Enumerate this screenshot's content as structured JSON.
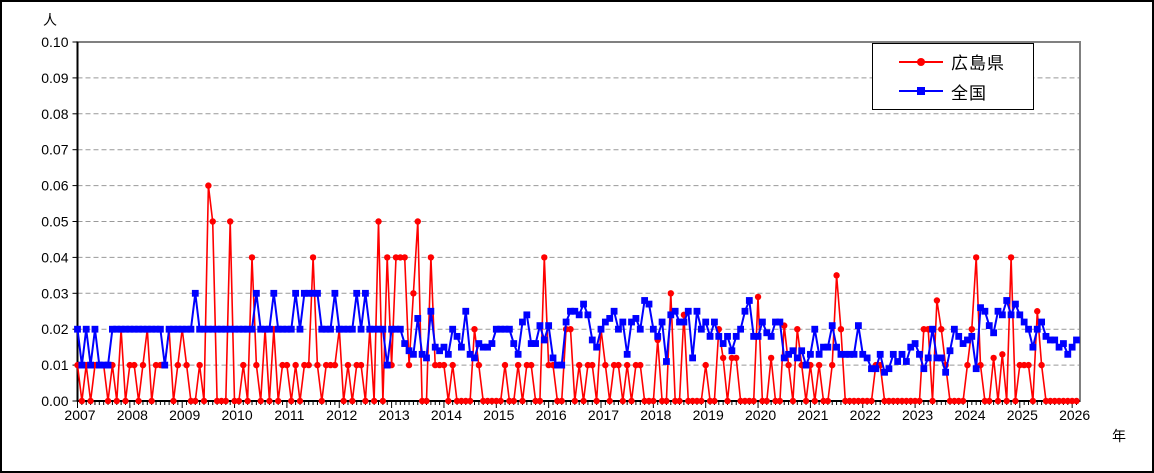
{
  "page": {
    "y_axis_unit": "人",
    "x_axis_unit": "年"
  },
  "chart_data": {
    "type": "line",
    "title": "",
    "x_unit_label": "年",
    "y_unit_label": "人",
    "frequency": "monthly",
    "x_start": "2007-01",
    "x_end": "2026-02",
    "x_tick_labels": [
      "2007",
      "2008",
      "2009",
      "2010",
      "2011",
      "2012",
      "2013",
      "2014",
      "2015",
      "2016",
      "2017",
      "2018",
      "2019",
      "2020",
      "2021",
      "2022",
      "2023",
      "2024",
      "2025",
      "2026"
    ],
    "y_tick_labels": [
      "0.00",
      "0.01",
      "0.02",
      "0.03",
      "0.04",
      "0.05",
      "0.06",
      "0.07",
      "0.08",
      "0.09",
      "0.10"
    ],
    "ylim": [
      0,
      0.1
    ],
    "grid": "horizontal-dashed",
    "legend_position": "top-right",
    "colors": {
      "grid": "#999999",
      "border": "#808080",
      "axis": "#000000"
    },
    "series": [
      {
        "name": "広島県",
        "color": "#ff0000",
        "marker": "circle",
        "values": [
          0.01,
          0,
          0.01,
          0,
          0.01,
          0.01,
          0.01,
          0,
          0.01,
          0,
          0.02,
          0,
          0.01,
          0.01,
          0,
          0.01,
          0.02,
          0,
          0.01,
          0.01,
          0.01,
          0.02,
          0,
          0.01,
          0.02,
          0.01,
          0,
          0,
          0.01,
          0,
          0.06,
          0.05,
          0,
          0,
          0,
          0.05,
          0,
          0,
          0.01,
          0,
          0.04,
          0.01,
          0,
          0.02,
          0,
          0.02,
          0,
          0.01,
          0.01,
          0,
          0.01,
          0,
          0.01,
          0.01,
          0.04,
          0.01,
          0,
          0.01,
          0.01,
          0.01,
          0.02,
          0,
          0.01,
          0,
          0.01,
          0.01,
          0,
          0.02,
          0,
          0.05,
          0,
          0.04,
          0.01,
          0.04,
          0.04,
          0.04,
          0.01,
          0.03,
          0.05,
          0,
          0,
          0.04,
          0.01,
          0.01,
          0.01,
          0,
          0.01,
          0,
          0,
          0,
          0,
          0.02,
          0.01,
          0,
          0,
          0,
          0,
          0,
          0.01,
          0,
          0,
          0.01,
          0,
          0.01,
          0.01,
          0,
          0,
          0.04,
          0.01,
          0.01,
          0,
          0,
          0.02,
          0.02,
          0,
          0.01,
          0,
          0.01,
          0.01,
          0,
          0.02,
          0.01,
          0,
          0.01,
          0.01,
          0,
          0.01,
          0,
          0.01,
          0.01,
          0,
          0,
          0,
          0.017,
          0,
          0,
          0.03,
          0,
          0,
          0.024,
          0,
          0,
          0,
          0,
          0.01,
          0,
          0,
          0.02,
          0.012,
          0,
          0.012,
          0.012,
          0,
          0,
          0,
          0,
          0.029,
          0,
          0,
          0.012,
          0,
          0,
          0.021,
          0.01,
          0,
          0.02,
          0.01,
          0,
          0.01,
          0,
          0.01,
          0,
          0,
          0.01,
          0.035,
          0.02,
          0,
          0,
          0,
          0,
          0,
          0,
          0,
          0.01,
          0.01,
          0,
          0,
          0,
          0,
          0,
          0,
          0,
          0,
          0,
          0.02,
          0.02,
          0,
          0.028,
          0.02,
          0.01,
          0,
          0,
          0,
          0,
          0.01,
          0.02,
          0.04,
          0.01,
          0,
          0,
          0.012,
          0,
          0.013,
          0,
          0.04,
          0,
          0.01,
          0.01,
          0.01,
          0,
          0.025,
          0.01,
          0,
          0,
          0,
          0,
          0,
          0,
          0,
          0
        ]
      },
      {
        "name": "全国",
        "color": "#0000ff",
        "marker": "square",
        "values": [
          0.02,
          0.01,
          0.02,
          0.01,
          0.02,
          0.01,
          0.01,
          0.01,
          0.02,
          0.02,
          0.02,
          0.02,
          0.02,
          0.02,
          0.02,
          0.02,
          0.02,
          0.02,
          0.02,
          0.02,
          0.01,
          0.02,
          0.02,
          0.02,
          0.02,
          0.02,
          0.02,
          0.03,
          0.02,
          0.02,
          0.02,
          0.02,
          0.02,
          0.02,
          0.02,
          0.02,
          0.02,
          0.02,
          0.02,
          0.02,
          0.02,
          0.03,
          0.02,
          0.02,
          0.02,
          0.03,
          0.02,
          0.02,
          0.02,
          0.02,
          0.03,
          0.02,
          0.03,
          0.03,
          0.03,
          0.03,
          0.02,
          0.02,
          0.02,
          0.03,
          0.02,
          0.02,
          0.02,
          0.02,
          0.03,
          0.02,
          0.03,
          0.02,
          0.02,
          0.02,
          0.02,
          0.01,
          0.02,
          0.02,
          0.02,
          0.016,
          0.014,
          0.013,
          0.023,
          0.013,
          0.012,
          0.025,
          0.015,
          0.014,
          0.015,
          0.013,
          0.02,
          0.018,
          0.015,
          0.025,
          0.013,
          0.012,
          0.016,
          0.015,
          0.015,
          0.016,
          0.02,
          0.02,
          0.02,
          0.02,
          0.016,
          0.013,
          0.022,
          0.024,
          0.016,
          0.016,
          0.021,
          0.017,
          0.021,
          0.012,
          0.01,
          0.01,
          0.022,
          0.025,
          0.025,
          0.024,
          0.027,
          0.024,
          0.017,
          0.015,
          0.02,
          0.022,
          0.023,
          0.025,
          0.02,
          0.022,
          0.013,
          0.022,
          0.023,
          0.02,
          0.028,
          0.027,
          0.02,
          0.018,
          0.022,
          0.011,
          0.024,
          0.025,
          0.022,
          0.022,
          0.025,
          0.012,
          0.025,
          0.02,
          0.022,
          0.018,
          0.022,
          0.018,
          0.016,
          0.018,
          0.014,
          0.018,
          0.02,
          0.025,
          0.028,
          0.018,
          0.018,
          0.022,
          0.019,
          0.018,
          0.022,
          0.022,
          0.012,
          0.013,
          0.014,
          0.012,
          0.014,
          0.01,
          0.013,
          0.02,
          0.013,
          0.015,
          0.015,
          0.021,
          0.015,
          0.013,
          0.013,
          0.013,
          0.013,
          0.021,
          0.013,
          0.012,
          0.009,
          0.009,
          0.013,
          0.008,
          0.009,
          0.013,
          0.011,
          0.013,
          0.011,
          0.015,
          0.016,
          0.013,
          0.009,
          0.012,
          0.02,
          0.012,
          0.012,
          0.008,
          0.014,
          0.02,
          0.018,
          0.016,
          0.017,
          0.018,
          0.009,
          0.026,
          0.025,
          0.021,
          0.019,
          0.025,
          0.024,
          0.028,
          0.024,
          0.027,
          0.024,
          0.022,
          0.02,
          0.015,
          0.02,
          0.022,
          0.018,
          0.017,
          0.017,
          0.015,
          0.016,
          0.013,
          0.015,
          0.017
        ]
      }
    ]
  }
}
